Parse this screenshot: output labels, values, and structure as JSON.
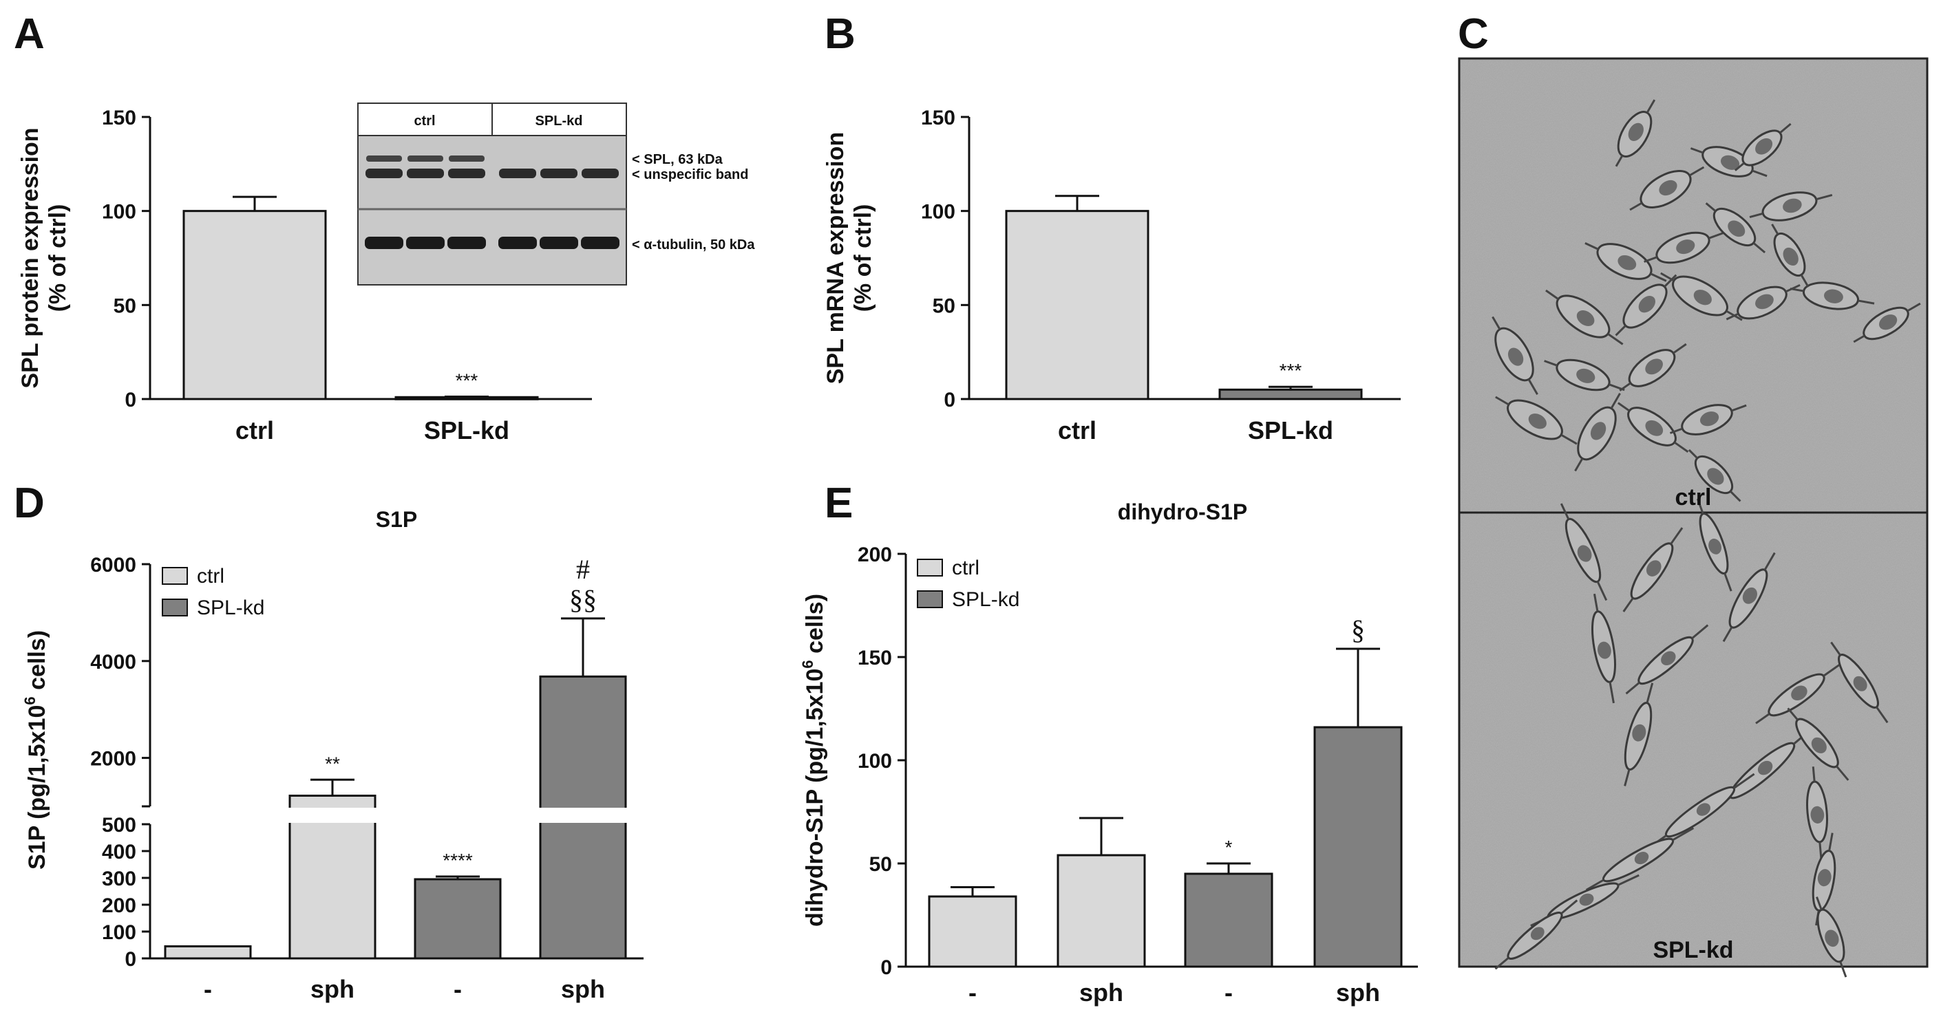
{
  "panels": {
    "A": "A",
    "B": "B",
    "C": "C",
    "D": "D",
    "E": "E"
  },
  "colors": {
    "ctrl": "#d9d9d9",
    "spl_kd": "#808080",
    "axis": "#111111",
    "micro_bg": "#a9a9a9"
  },
  "chart_data": [
    {
      "id": "A",
      "type": "bar",
      "title": "",
      "ylabel": [
        "SPL protein expression",
        "(% of ctrl)"
      ],
      "categories": [
        "ctrl",
        "SPL-kd"
      ],
      "values": [
        100,
        1
      ],
      "errors": [
        7.5,
        0.3
      ],
      "annotations": [
        "",
        "***"
      ],
      "ylim": [
        0,
        150
      ],
      "yticks": [
        0,
        50,
        100,
        150
      ],
      "inset": {
        "lanes": [
          "ctrl",
          "SPL-kd"
        ],
        "band_labels": [
          "< SPL, 63 kDa",
          "< unspecific band",
          "< α-tubulin, 50 kDa"
        ]
      }
    },
    {
      "id": "B",
      "type": "bar",
      "title": "",
      "ylabel": [
        "SPL mRNA expression",
        "(% of ctrl)"
      ],
      "categories": [
        "ctrl",
        "SPL-kd"
      ],
      "values": [
        100,
        5
      ],
      "errors": [
        8,
        1.5
      ],
      "annotations": [
        "",
        "***"
      ],
      "ylim": [
        0,
        150
      ],
      "yticks": [
        0,
        50,
        100,
        150
      ]
    },
    {
      "id": "D",
      "type": "bar",
      "title": "S1P",
      "ylabel_parts": [
        "S1P (pg/1,5x10",
        "6",
        " cells)"
      ],
      "categories": [
        "-",
        "sph",
        "-",
        "sph"
      ],
      "series_of_bar": [
        "ctrl",
        "ctrl",
        "SPL-kd",
        "SPL-kd"
      ],
      "values": [
        45,
        1220,
        295,
        3680
      ],
      "errors": [
        2,
        330,
        10,
        1200
      ],
      "annotations": [
        [],
        [
          "**"
        ],
        [
          "****"
        ],
        [
          "§§",
          "#"
        ]
      ],
      "legend": [
        "ctrl",
        "SPL-kd"
      ],
      "ylim_lower": [
        0,
        500
      ],
      "yticks_lower": [
        0,
        100,
        200,
        300,
        400,
        500
      ],
      "ylim_upper": [
        1000,
        6000
      ],
      "yticks_upper": [
        2000,
        4000,
        6000
      ]
    },
    {
      "id": "E",
      "type": "bar",
      "title": "dihydro-S1P",
      "ylabel_parts": [
        "dihydro-S1P (pg/1,5x10",
        "6",
        " cells)"
      ],
      "categories": [
        "-",
        "sph",
        "-",
        "sph"
      ],
      "series_of_bar": [
        "ctrl",
        "ctrl",
        "SPL-kd",
        "SPL-kd"
      ],
      "values": [
        34,
        54,
        45,
        116
      ],
      "errors": [
        4.5,
        18,
        5,
        38
      ],
      "annotations": [
        [],
        [],
        [
          "*"
        ],
        [
          "§"
        ]
      ],
      "legend": [
        "ctrl",
        "SPL-kd"
      ],
      "ylim": [
        0,
        200
      ],
      "yticks": [
        0,
        50,
        100,
        150,
        200
      ]
    }
  ],
  "micrographs": {
    "top_label": "ctrl",
    "bottom_label": "SPL-kd"
  }
}
